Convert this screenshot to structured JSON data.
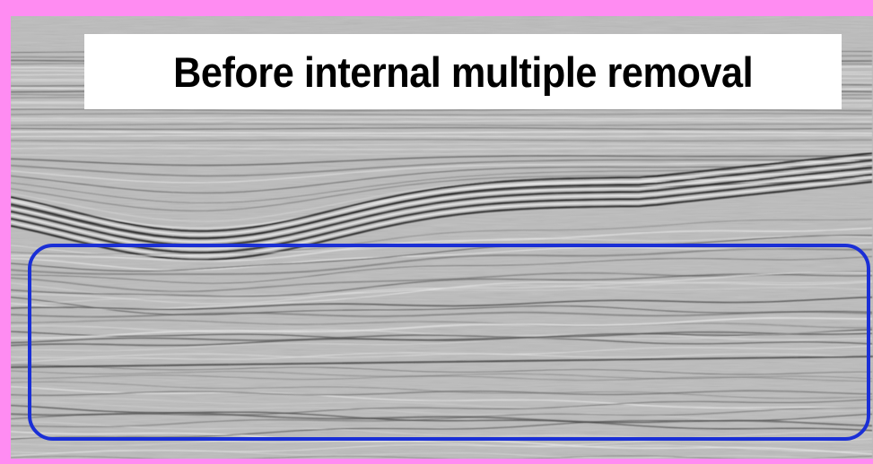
{
  "title": "Before internal multiple removal",
  "colors": {
    "frame_border": "#ff8cf2",
    "highlight_box": "#1a2fd6",
    "title_background": "#ffffff",
    "title_text": "#000000",
    "seismic_background": "#b9b9b9"
  },
  "image": {
    "content": "seismic-section",
    "highlight": "rounded-rectangle-outline"
  }
}
